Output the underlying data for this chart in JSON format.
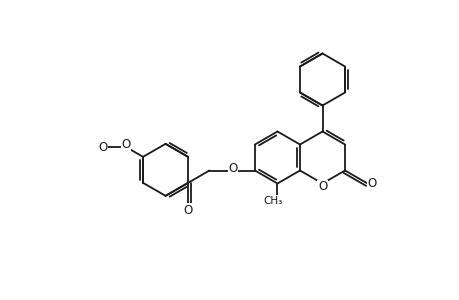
{
  "background_color": "#ffffff",
  "line_color": "#1a1a1a",
  "line_width": 1.3,
  "font_size": 8.5,
  "fig_width": 4.6,
  "fig_height": 3.0,
  "dpi": 100,
  "xlim": [
    0.0,
    9.2
  ],
  "ylim": [
    0.3,
    6.0
  ]
}
